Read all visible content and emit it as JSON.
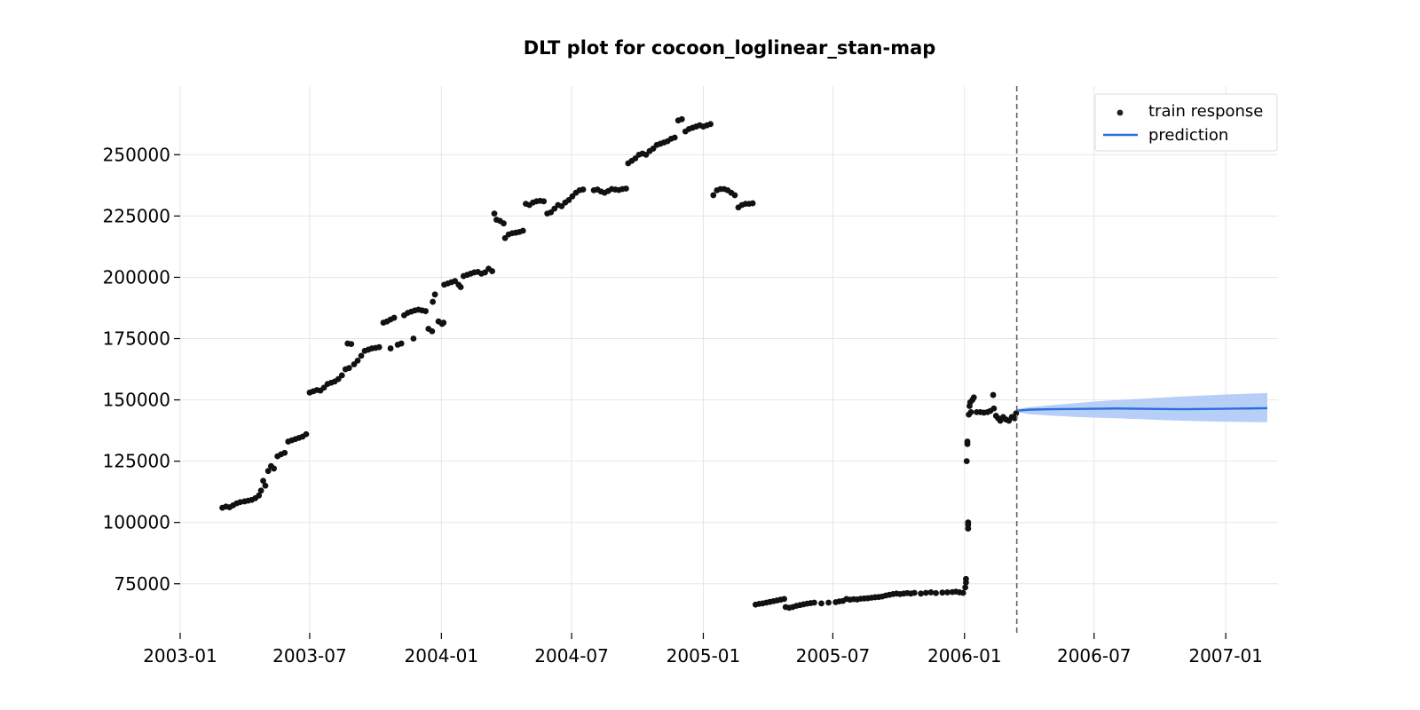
{
  "chart_data": {
    "type": "scatter",
    "title": "DLT plot for cocoon_loglinear_stan-map",
    "xlabel": "",
    "ylabel": "",
    "x_axis": {
      "type": "date",
      "range": [
        "2003-01-01",
        "2007-03-15"
      ],
      "ticks": [
        "2003-01",
        "2003-07",
        "2004-01",
        "2004-07",
        "2005-01",
        "2005-07",
        "2006-01",
        "2006-07",
        "2007-01"
      ]
    },
    "y_axis": {
      "range": [
        55000,
        278000
      ],
      "ticks": [
        75000,
        100000,
        125000,
        150000,
        175000,
        200000,
        225000,
        250000
      ],
      "tick_labels": [
        "75000",
        "100000",
        "125000",
        "150000",
        "175000",
        "200000",
        "225000",
        "250000"
      ]
    },
    "grid": true,
    "legend": {
      "placement": "top-right",
      "entries": [
        {
          "label": "train response",
          "marker": "dot",
          "color": "#222222"
        },
        {
          "label": "prediction",
          "marker": "line",
          "color": "#2a6fdb"
        }
      ]
    },
    "training_cutoff": "2006-03-15",
    "series": [
      {
        "name": "train response",
        "kind": "scatter",
        "color": "#111111",
        "points": [
          [
            "2003-03-01",
            106000
          ],
          [
            "2003-03-06",
            106500
          ],
          [
            "2003-03-11",
            106200
          ],
          [
            "2003-03-16",
            107000
          ],
          [
            "2003-03-21",
            107800
          ],
          [
            "2003-03-26",
            108300
          ],
          [
            "2003-04-01",
            108600
          ],
          [
            "2003-04-06",
            108900
          ],
          [
            "2003-04-11",
            109200
          ],
          [
            "2003-04-16",
            109900
          ],
          [
            "2003-04-21",
            111000
          ],
          [
            "2003-04-24",
            113000
          ],
          [
            "2003-04-27",
            117000
          ],
          [
            "2003-04-30",
            115000
          ],
          [
            "2003-05-04",
            121000
          ],
          [
            "2003-05-08",
            123000
          ],
          [
            "2003-05-12",
            122000
          ],
          [
            "2003-05-17",
            127000
          ],
          [
            "2003-05-22",
            127800
          ],
          [
            "2003-05-27",
            128400
          ],
          [
            "2003-06-01",
            133000
          ],
          [
            "2003-06-06",
            133500
          ],
          [
            "2003-06-11",
            134000
          ],
          [
            "2003-06-16",
            134500
          ],
          [
            "2003-06-21",
            135000
          ],
          [
            "2003-06-26",
            136000
          ],
          [
            "2003-07-01",
            153000
          ],
          [
            "2003-07-06",
            153500
          ],
          [
            "2003-07-11",
            154000
          ],
          [
            "2003-07-16",
            153800
          ],
          [
            "2003-07-21",
            155000
          ],
          [
            "2003-07-26",
            156500
          ],
          [
            "2003-07-31",
            157000
          ],
          [
            "2003-08-05",
            157500
          ],
          [
            "2003-08-10",
            158500
          ],
          [
            "2003-08-15",
            160000
          ],
          [
            "2003-08-20",
            162500
          ],
          [
            "2003-08-25",
            163000
          ],
          [
            "2003-08-23",
            173000
          ],
          [
            "2003-08-28",
            172800
          ],
          [
            "2003-09-01",
            164500
          ],
          [
            "2003-09-06",
            166000
          ],
          [
            "2003-09-11",
            168000
          ],
          [
            "2003-09-16",
            170000
          ],
          [
            "2003-09-21",
            170500
          ],
          [
            "2003-09-26",
            171000
          ],
          [
            "2003-10-01",
            171200
          ],
          [
            "2003-10-06",
            171500
          ],
          [
            "2003-10-12",
            181500
          ],
          [
            "2003-10-17",
            182000
          ],
          [
            "2003-10-22",
            182800
          ],
          [
            "2003-10-27",
            183500
          ],
          [
            "2003-10-22",
            171000
          ],
          [
            "2003-11-01",
            172500
          ],
          [
            "2003-11-06",
            173000
          ],
          [
            "2003-11-10",
            184500
          ],
          [
            "2003-11-15",
            185500
          ],
          [
            "2003-11-20",
            186000
          ],
          [
            "2003-11-25",
            186500
          ],
          [
            "2003-11-30",
            186800
          ],
          [
            "2003-12-05",
            186500
          ],
          [
            "2003-12-10",
            186200
          ],
          [
            "2003-11-23",
            175000
          ],
          [
            "2003-12-14",
            179000
          ],
          [
            "2003-12-19",
            178000
          ],
          [
            "2003-12-20",
            190000
          ],
          [
            "2003-12-23",
            193000
          ],
          [
            "2003-12-28",
            182000
          ],
          [
            "2004-01-02",
            181000
          ],
          [
            "2004-01-04",
            181500
          ],
          [
            "2004-01-05",
            197000
          ],
          [
            "2004-01-10",
            197500
          ],
          [
            "2004-01-15",
            198000
          ],
          [
            "2004-01-20",
            198500
          ],
          [
            "2004-01-25",
            197000
          ],
          [
            "2004-01-28",
            196000
          ],
          [
            "2004-02-01",
            200500
          ],
          [
            "2004-02-06",
            201000
          ],
          [
            "2004-02-11",
            201500
          ],
          [
            "2004-02-16",
            202000
          ],
          [
            "2004-02-21",
            202200
          ],
          [
            "2004-02-26",
            201500
          ],
          [
            "2004-03-02",
            202000
          ],
          [
            "2004-03-07",
            203500
          ],
          [
            "2004-03-12",
            202500
          ],
          [
            "2004-03-15",
            226000
          ],
          [
            "2004-03-18",
            223500
          ],
          [
            "2004-03-23",
            223000
          ],
          [
            "2004-03-28",
            222000
          ],
          [
            "2004-03-30",
            216000
          ],
          [
            "2004-04-04",
            217500
          ],
          [
            "2004-04-09",
            218000
          ],
          [
            "2004-04-14",
            218200
          ],
          [
            "2004-04-19",
            218500
          ],
          [
            "2004-04-24",
            219000
          ],
          [
            "2004-04-28",
            230000
          ],
          [
            "2004-05-03",
            229500
          ],
          [
            "2004-05-08",
            230500
          ],
          [
            "2004-05-13",
            231000
          ],
          [
            "2004-05-18",
            231200
          ],
          [
            "2004-05-23",
            231000
          ],
          [
            "2004-05-28",
            226000
          ],
          [
            "2004-06-02",
            226500
          ],
          [
            "2004-06-07",
            228000
          ],
          [
            "2004-06-12",
            229500
          ],
          [
            "2004-06-17",
            229000
          ],
          [
            "2004-06-22",
            230500
          ],
          [
            "2004-06-27",
            231500
          ],
          [
            "2004-07-02",
            233000
          ],
          [
            "2004-07-07",
            234500
          ],
          [
            "2004-07-12",
            235500
          ],
          [
            "2004-07-17",
            235800
          ],
          [
            "2004-08-01",
            235500
          ],
          [
            "2004-08-06",
            235800
          ],
          [
            "2004-08-11",
            235000
          ],
          [
            "2004-08-16",
            234500
          ],
          [
            "2004-08-21",
            235200
          ],
          [
            "2004-08-26",
            236000
          ],
          [
            "2004-08-31",
            235800
          ],
          [
            "2004-09-05",
            235600
          ],
          [
            "2004-09-10",
            236000
          ],
          [
            "2004-09-15",
            236200
          ],
          [
            "2004-09-18",
            246500
          ],
          [
            "2004-09-23",
            247500
          ],
          [
            "2004-09-28",
            248500
          ],
          [
            "2004-10-03",
            250000
          ],
          [
            "2004-10-08",
            250500
          ],
          [
            "2004-10-13",
            250000
          ],
          [
            "2004-10-18",
            251500
          ],
          [
            "2004-10-23",
            252500
          ],
          [
            "2004-10-28",
            254000
          ],
          [
            "2004-11-02",
            254500
          ],
          [
            "2004-11-07",
            255000
          ],
          [
            "2004-11-12",
            255500
          ],
          [
            "2004-11-17",
            256500
          ],
          [
            "2004-11-22",
            257000
          ],
          [
            "2004-11-27",
            264000
          ],
          [
            "2004-12-02",
            264500
          ],
          [
            "2004-12-07",
            259500
          ],
          [
            "2004-12-12",
            260500
          ],
          [
            "2004-12-17",
            261000
          ],
          [
            "2004-12-22",
            261500
          ],
          [
            "2004-12-27",
            262000
          ],
          [
            "2005-01-01",
            261500
          ],
          [
            "2005-01-06",
            262000
          ],
          [
            "2005-01-11",
            262500
          ],
          [
            "2005-01-15",
            233500
          ],
          [
            "2005-01-20",
            235500
          ],
          [
            "2005-01-25",
            236000
          ],
          [
            "2005-01-30",
            236000
          ],
          [
            "2005-02-04",
            235500
          ],
          [
            "2005-02-09",
            234500
          ],
          [
            "2005-02-14",
            233500
          ],
          [
            "2005-02-19",
            228500
          ],
          [
            "2005-02-24",
            229500
          ],
          [
            "2005-03-01",
            230000
          ],
          [
            "2005-03-06",
            230000
          ],
          [
            "2005-03-11",
            230200
          ],
          [
            "2005-03-15",
            66500
          ],
          [
            "2005-03-20",
            66800
          ],
          [
            "2005-03-25",
            67000
          ],
          [
            "2005-03-30",
            67300
          ],
          [
            "2005-04-04",
            67600
          ],
          [
            "2005-04-09",
            67900
          ],
          [
            "2005-04-14",
            68200
          ],
          [
            "2005-04-19",
            68500
          ],
          [
            "2005-04-24",
            68800
          ],
          [
            "2005-04-26",
            65500
          ],
          [
            "2005-05-01",
            65200
          ],
          [
            "2005-05-06",
            65500
          ],
          [
            "2005-05-11",
            66000
          ],
          [
            "2005-05-16",
            66300
          ],
          [
            "2005-05-21",
            66600
          ],
          [
            "2005-05-26",
            66900
          ],
          [
            "2005-05-31",
            67100
          ],
          [
            "2005-06-05",
            67300
          ],
          [
            "2005-06-15",
            67000
          ],
          [
            "2005-06-25",
            67300
          ],
          [
            "2005-07-05",
            67500
          ],
          [
            "2005-07-10",
            67800
          ],
          [
            "2005-07-15",
            68000
          ],
          [
            "2005-07-20",
            68800
          ],
          [
            "2005-07-25",
            68500
          ],
          [
            "2005-07-30",
            68700
          ],
          [
            "2005-08-04",
            68600
          ],
          [
            "2005-08-09",
            68900
          ],
          [
            "2005-08-14",
            69000
          ],
          [
            "2005-08-19",
            69100
          ],
          [
            "2005-08-24",
            69300
          ],
          [
            "2005-08-29",
            69500
          ],
          [
            "2005-09-03",
            69600
          ],
          [
            "2005-09-08",
            69800
          ],
          [
            "2005-09-13",
            70200
          ],
          [
            "2005-09-18",
            70500
          ],
          [
            "2005-09-23",
            70800
          ],
          [
            "2005-09-28",
            71000
          ],
          [
            "2005-10-03",
            70800
          ],
          [
            "2005-10-08",
            71000
          ],
          [
            "2005-10-13",
            71200
          ],
          [
            "2005-10-18",
            71000
          ],
          [
            "2005-10-23",
            71300
          ],
          [
            "2005-11-01",
            71000
          ],
          [
            "2005-11-08",
            71300
          ],
          [
            "2005-11-15",
            71500
          ],
          [
            "2005-11-22",
            71200
          ],
          [
            "2005-12-01",
            71400
          ],
          [
            "2005-12-08",
            71500
          ],
          [
            "2005-12-15",
            71600
          ],
          [
            "2005-12-20",
            71800
          ],
          [
            "2005-12-25",
            71500
          ],
          [
            "2005-12-30",
            71300
          ],
          [
            "2006-01-02",
            73500
          ],
          [
            "2006-01-03",
            75500
          ],
          [
            "2006-01-03",
            77000
          ],
          [
            "2006-01-04",
            125000
          ],
          [
            "2006-01-05",
            132000
          ],
          [
            "2006-01-05",
            133000
          ],
          [
            "2006-01-06",
            97500
          ],
          [
            "2006-01-06",
            100000
          ],
          [
            "2006-01-06",
            99000
          ],
          [
            "2006-01-07",
            144000
          ],
          [
            "2006-01-08",
            147500
          ],
          [
            "2006-01-09",
            149000
          ],
          [
            "2006-01-10",
            145000
          ],
          [
            "2006-01-12",
            150000
          ],
          [
            "2006-01-14",
            151000
          ],
          [
            "2006-01-18",
            145000
          ],
          [
            "2006-01-23",
            145000
          ],
          [
            "2006-01-28",
            144800
          ],
          [
            "2006-02-02",
            145000
          ],
          [
            "2006-02-06",
            145500
          ],
          [
            "2006-02-10",
            152000
          ],
          [
            "2006-02-11",
            146500
          ],
          [
            "2006-02-14",
            143500
          ],
          [
            "2006-02-17",
            142500
          ],
          [
            "2006-02-20",
            141500
          ],
          [
            "2006-02-24",
            143000
          ],
          [
            "2006-02-28",
            142000
          ],
          [
            "2006-03-04",
            141500
          ],
          [
            "2006-03-08",
            143000
          ],
          [
            "2006-03-12",
            142500
          ],
          [
            "2006-03-14",
            144500
          ]
        ]
      },
      {
        "name": "prediction",
        "kind": "line",
        "color": "#2a6fdb",
        "points": [
          [
            "2006-03-16",
            145600
          ],
          [
            "2006-04-01",
            146000
          ],
          [
            "2006-05-01",
            146200
          ],
          [
            "2006-06-01",
            146300
          ],
          [
            "2006-07-01",
            146400
          ],
          [
            "2006-08-01",
            146500
          ],
          [
            "2006-09-01",
            146400
          ],
          [
            "2006-10-01",
            146300
          ],
          [
            "2006-11-01",
            146200
          ],
          [
            "2006-12-01",
            146300
          ],
          [
            "2007-01-01",
            146400
          ],
          [
            "2007-02-01",
            146500
          ],
          [
            "2007-02-28",
            146600
          ]
        ],
        "band": {
          "color": "#a9c6f7",
          "lower": [
            145000,
            144200,
            143600,
            143100,
            142800,
            142500,
            142200,
            141800,
            141500,
            141300,
            141100,
            141000,
            140900
          ],
          "upper": [
            146300,
            147000,
            147800,
            148600,
            149300,
            149900,
            150400,
            150900,
            151400,
            151800,
            152200,
            152500,
            152800
          ]
        }
      }
    ]
  }
}
